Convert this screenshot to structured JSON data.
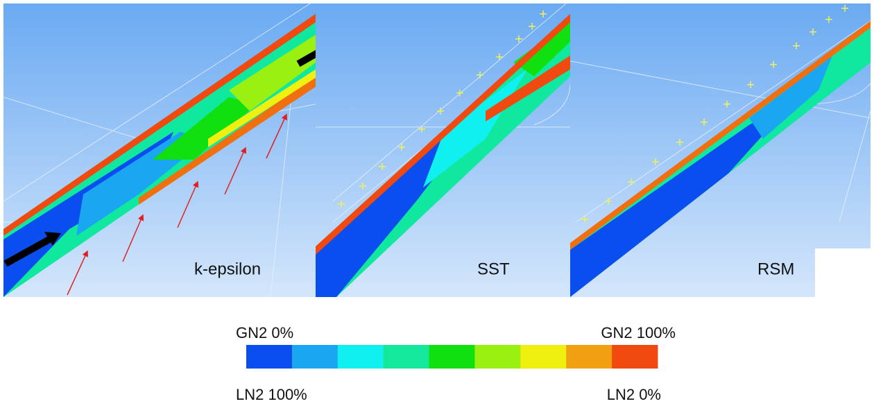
{
  "panels": [
    {
      "label": "k-epsilon"
    },
    {
      "label": "SST"
    },
    {
      "label": "RSM"
    }
  ],
  "legend": {
    "top_left": "GN2 0%",
    "top_right": "GN2 100%",
    "bottom_left": "LN2 100%",
    "bottom_right": "LN2 0%",
    "colors": [
      "#0a4ef0",
      "#1aa6f0",
      "#10f0f0",
      "#14e89a",
      "#10e010",
      "#9af010",
      "#f0f010",
      "#f0a010",
      "#f04a10"
    ]
  }
}
